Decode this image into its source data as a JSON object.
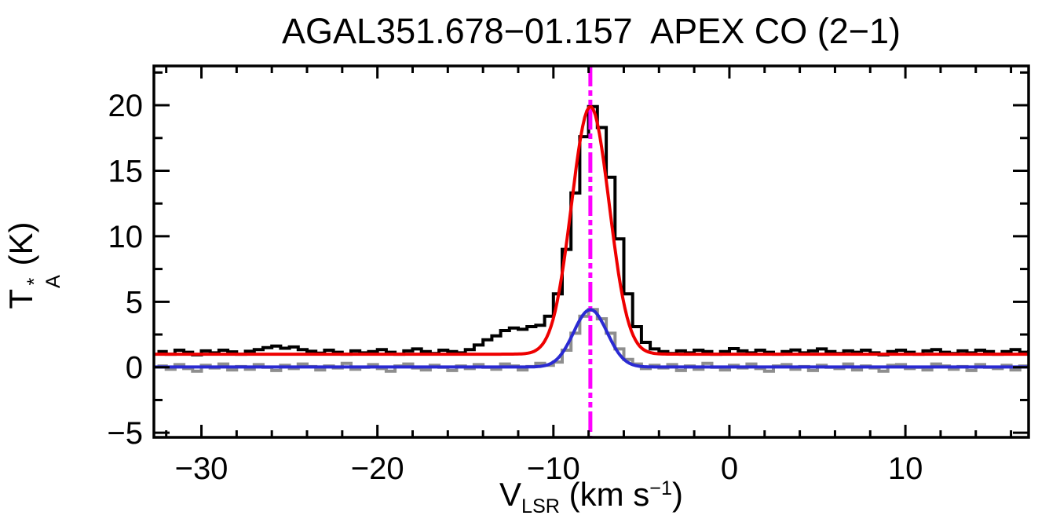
{
  "title": "AGAL351.678−01.157  APEX CO (2−1)",
  "colors": {
    "frame": "#000000",
    "black_spectrum": "#000000",
    "gray_spectrum": "#8e8e8e",
    "red_fit": "#ee0000",
    "blue_fit": "#2a2ad2",
    "vline": "#ff00ff",
    "background": "#ffffff"
  },
  "chart_data": {
    "type": "line",
    "title": "AGAL351.678−01.157  APEX CO (2−1)",
    "x_axis": {
      "label": {
        "pre": "V",
        "sub": "LSR",
        "mid": " (km s",
        "sup": "−1",
        "post": ")"
      },
      "range": [
        -32.7,
        17.0
      ],
      "major_ticks": [
        {
          "v": -30,
          "label": "−30"
        },
        {
          "v": -20,
          "label": "−20"
        },
        {
          "v": -10,
          "label": "−10"
        },
        {
          "v": 0,
          "label": "0"
        },
        {
          "v": 10,
          "label": "10"
        }
      ],
      "minor_step": 2,
      "grid": false
    },
    "y_axis": {
      "label": {
        "pre": "T",
        "sup": "*",
        "sub": "A",
        "post": " (K)"
      },
      "range": [
        -5.35,
        23.0
      ],
      "major_ticks": [
        {
          "v": -5,
          "label": "−5"
        },
        {
          "v": 0,
          "label": "0"
        },
        {
          "v": 5,
          "label": "5"
        },
        {
          "v": 10,
          "label": "10"
        },
        {
          "v": 15,
          "label": "15"
        },
        {
          "v": 20,
          "label": "20"
        }
      ],
      "minor_step": 2.5,
      "grid": false
    },
    "bin_start": -32.5,
    "bin_width": 0.5,
    "series": [
      {
        "name": "black-histogram",
        "style": "histogram",
        "color_key": "black_spectrum",
        "stroke_width": 4,
        "values": [
          1.2,
          1.0,
          1.3,
          1.15,
          0.95,
          1.25,
          1.1,
          1.3,
          1.18,
          1.0,
          1.22,
          1.35,
          1.5,
          1.62,
          1.45,
          1.55,
          1.35,
          1.22,
          1.08,
          1.3,
          1.15,
          1.0,
          1.25,
          1.1,
          1.2,
          1.35,
          1.15,
          1.0,
          1.25,
          1.4,
          1.2,
          1.05,
          1.3,
          1.2,
          1.1,
          1.35,
          1.7,
          2.1,
          2.4,
          2.8,
          3.0,
          2.9,
          3.1,
          3.2,
          3.9,
          5.6,
          9.0,
          13.3,
          17.6,
          19.9,
          18.3,
          14.5,
          9.8,
          5.6,
          3.1,
          1.9,
          1.4,
          1.2,
          1.05,
          1.25,
          1.1,
          1.3,
          1.2,
          1.0,
          1.2,
          1.42,
          1.25,
          1.1,
          1.3,
          1.15,
          1.0,
          1.2,
          1.32,
          1.1,
          1.25,
          1.4,
          1.2,
          1.05,
          1.25,
          1.15,
          1.3,
          1.1,
          0.95,
          1.2,
          1.3,
          1.15,
          1.0,
          1.25,
          1.35,
          1.15,
          1.05,
          1.25,
          1.1,
          1.3,
          1.2,
          1.0,
          1.2,
          1.35,
          1.15,
          1.3
        ]
      },
      {
        "name": "gray-histogram",
        "style": "histogram",
        "color_key": "gray_spectrum",
        "stroke_width": 4,
        "values": [
          0.1,
          -0.15,
          0.2,
          -0.1,
          -0.3,
          0.15,
          -0.05,
          0.25,
          -0.2,
          0.05,
          -0.15,
          0.2,
          0.0,
          -0.25,
          0.15,
          -0.1,
          0.25,
          0.05,
          -0.2,
          0.1,
          -0.05,
          0.3,
          -0.15,
          0.0,
          0.2,
          -0.1,
          -0.3,
          0.1,
          0.25,
          -0.05,
          -0.2,
          0.15,
          0.0,
          -0.25,
          0.1,
          -0.1,
          0.2,
          0.0,
          -0.15,
          0.25,
          0.1,
          -0.2,
          0.05,
          0.3,
          0.15,
          0.4,
          1.3,
          2.6,
          3.9,
          4.4,
          3.7,
          2.6,
          1.4,
          0.6,
          0.25,
          -0.1,
          0.15,
          -0.05,
          0.2,
          -0.25,
          0.1,
          -0.15,
          0.3,
          0.0,
          -0.2,
          0.15,
          -0.05,
          0.25,
          -0.1,
          -0.3,
          0.1,
          0.2,
          -0.15,
          0.05,
          -0.25,
          0.15,
          0.0,
          -0.1,
          0.25,
          -0.2,
          0.1,
          -0.05,
          -0.3,
          0.15,
          0.2,
          -0.1,
          0.0,
          -0.2,
          0.25,
          0.1,
          -0.15,
          0.05,
          -0.25,
          0.2,
          0.0,
          -0.1,
          0.15,
          -0.2,
          0.1,
          -0.05
        ]
      }
    ],
    "fits": [
      {
        "name": "red-gaussian-fit",
        "color_key": "red_fit",
        "stroke_width": 4,
        "baseline": 1.0,
        "amplitude": 18.9,
        "center": -7.9,
        "sigma": 1.07
      },
      {
        "name": "blue-gaussian-fit",
        "color_key": "blue_fit",
        "stroke_width": 4,
        "baseline": 0.02,
        "amplitude": 4.38,
        "center": -7.9,
        "sigma": 0.95
      }
    ],
    "vline": {
      "name": "vlsr-marker-line",
      "x": -7.9,
      "color_key": "vline",
      "stroke_width": 5,
      "dash": [
        26,
        5,
        7,
        5,
        7,
        5
      ]
    },
    "legend": null
  }
}
